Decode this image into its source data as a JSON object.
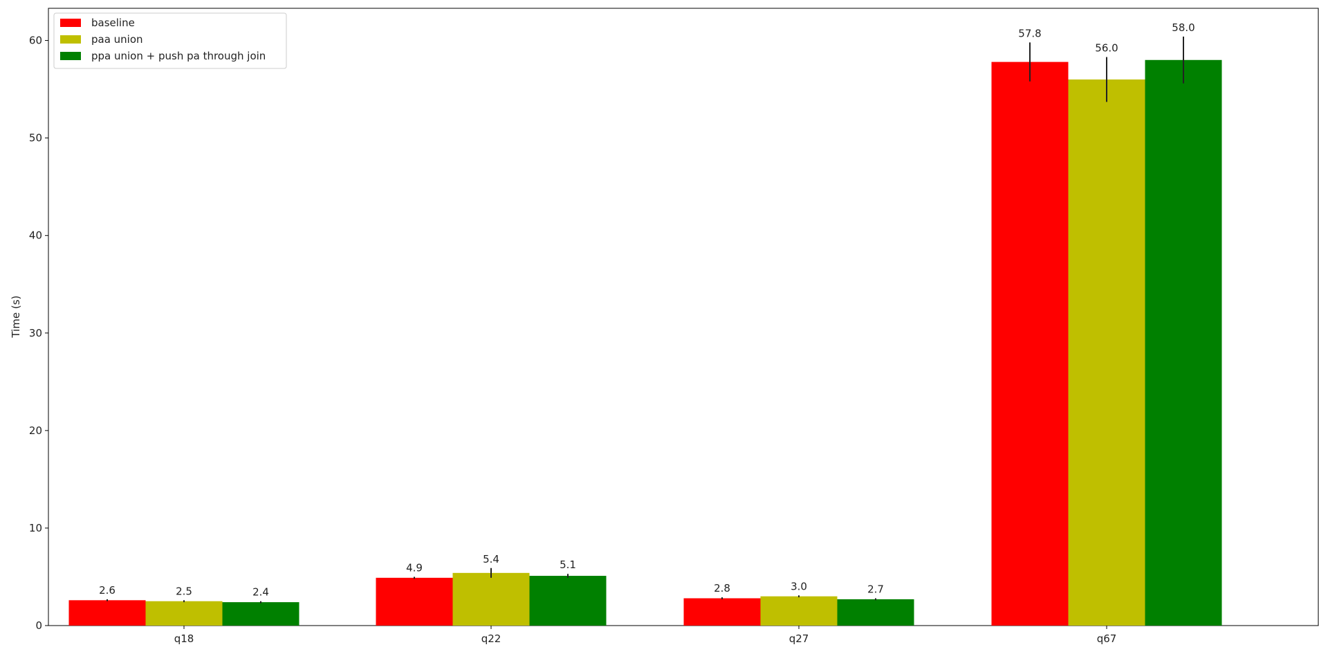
{
  "chart_data": {
    "type": "bar",
    "title": "",
    "xlabel": "",
    "ylabel": "Time (s)",
    "categories": [
      "q18",
      "q22",
      "q27",
      "q67"
    ],
    "series": [
      {
        "name": "baseline",
        "color": "#ff0000",
        "values": [
          2.6,
          4.9,
          2.8,
          57.8
        ],
        "errors": [
          0.1,
          0.1,
          0.1,
          2.0
        ]
      },
      {
        "name": "paa union",
        "color": "#bfbf00",
        "values": [
          2.5,
          5.4,
          3.0,
          56.0
        ],
        "errors": [
          0.1,
          0.5,
          0.1,
          2.3
        ]
      },
      {
        "name": "ppa union + push pa through join",
        "color": "#008000",
        "values": [
          2.4,
          5.1,
          2.7,
          58.0
        ],
        "errors": [
          0.1,
          0.2,
          0.1,
          2.4
        ]
      }
    ],
    "data_labels": [
      [
        "2.6",
        "4.9",
        "2.8",
        "57.8"
      ],
      [
        "2.5",
        "5.4",
        "3.0",
        "56.0"
      ],
      [
        "2.4",
        "5.1",
        "2.7",
        "58.0"
      ]
    ],
    "yticks": [
      0,
      10,
      20,
      30,
      40,
      50,
      60
    ],
    "ylim": [
      0,
      63.3
    ],
    "grid": false,
    "legend_position": "top-left"
  }
}
